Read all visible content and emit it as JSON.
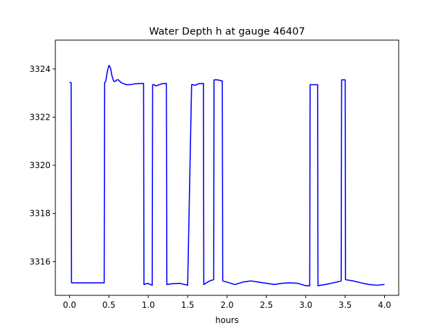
{
  "chart_data": {
    "type": "line",
    "title": "Water Depth h at gauge 46407",
    "xlabel": "hours",
    "ylabel": "",
    "xlim": [
      -0.18,
      4.18
    ],
    "ylim": [
      3314.6,
      3325.2
    ],
    "xticks": [
      0.0,
      0.5,
      1.0,
      1.5,
      2.0,
      2.5,
      3.0,
      3.5,
      4.0
    ],
    "xtick_labels": [
      "0.0",
      "0.5",
      "1.0",
      "1.5",
      "2.0",
      "2.5",
      "3.0",
      "3.5",
      "4.0"
    ],
    "yticks": [
      3316,
      3318,
      3320,
      3322,
      3324
    ],
    "ytick_labels": [
      "3316",
      "3318",
      "3320",
      "3322",
      "3324"
    ],
    "grid": false,
    "series": [
      {
        "color": "#0000ff",
        "x": [
          0.0,
          0.02,
          0.025,
          0.44,
          0.445,
          0.46,
          0.48,
          0.5,
          0.52,
          0.54,
          0.56,
          0.58,
          0.6,
          0.62,
          0.65,
          0.68,
          0.72,
          0.77,
          0.82,
          0.88,
          0.94,
          0.945,
          0.99,
          1.05,
          1.055,
          1.07,
          1.1,
          1.14,
          1.19,
          1.23,
          1.235,
          1.3,
          1.4,
          1.5,
          1.55,
          1.555,
          1.6,
          1.65,
          1.7,
          1.705,
          1.78,
          1.83,
          1.835,
          1.88,
          1.94,
          1.945,
          2.0,
          2.1,
          2.2,
          2.3,
          2.4,
          2.5,
          2.6,
          2.7,
          2.8,
          2.9,
          3.0,
          3.05,
          3.055,
          3.1,
          3.15,
          3.155,
          3.25,
          3.35,
          3.45,
          3.455,
          3.5,
          3.505,
          3.6,
          3.7,
          3.8,
          3.9,
          4.0
        ],
        "y": [
          3323.45,
          3323.43,
          3315.12,
          3315.12,
          3323.42,
          3323.5,
          3323.9,
          3324.15,
          3324.05,
          3323.7,
          3323.5,
          3323.48,
          3323.55,
          3323.55,
          3323.45,
          3323.4,
          3323.35,
          3323.35,
          3323.38,
          3323.4,
          3323.4,
          3315.05,
          3315.1,
          3315.02,
          3323.35,
          3323.35,
          3323.3,
          3323.35,
          3323.4,
          3323.4,
          3315.05,
          3315.08,
          3315.1,
          3315.02,
          3323.35,
          3323.35,
          3323.33,
          3323.4,
          3323.4,
          3315.05,
          3315.2,
          3315.25,
          3323.55,
          3323.55,
          3323.5,
          3315.2,
          3315.15,
          3315.05,
          3315.15,
          3315.2,
          3315.15,
          3315.1,
          3315.05,
          3315.1,
          3315.12,
          3315.1,
          3315.0,
          3315.0,
          3323.35,
          3323.35,
          3323.35,
          3315.0,
          3315.05,
          3315.12,
          3315.2,
          3323.55,
          3323.55,
          3315.25,
          3315.2,
          3315.12,
          3315.05,
          3315.02,
          3315.05
        ]
      }
    ]
  }
}
